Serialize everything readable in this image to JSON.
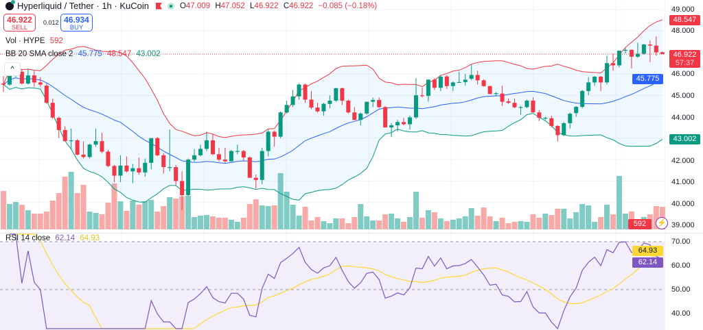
{
  "header": {
    "title": "Hyperliquid / Tether · 1h · KuCoin",
    "ohlc": {
      "o_label": "O",
      "o": "47.009",
      "h_label": "H",
      "h": "47.052",
      "l_label": "L",
      "l": "46.922",
      "c_label": "C",
      "c": "46.922",
      "change": "−0.085 (−0.18%)"
    },
    "sell_price": "46.922",
    "sell_label": "SELL",
    "spread": "0.012",
    "buy_price": "46.934",
    "buy_label": "BUY",
    "icons": [
      "coin-logo-icon",
      "flag-icon",
      "market-open-dot-icon",
      "chevron-up-icon",
      "lightning-icon"
    ]
  },
  "legends": {
    "vol": {
      "label": "Vol · HYPE",
      "value": "592"
    },
    "bb": {
      "label": "BB 20 SMA close 2",
      "basis": "45.775",
      "upper": "48.547",
      "lower": "43.002"
    },
    "rsi": {
      "label": "RSI 14 close",
      "rsi": "62.14",
      "ma": "64.93"
    }
  },
  "axis": {
    "price_ticks": [
      "49.000",
      "48.000",
      "46.000",
      "45.000",
      "44.000",
      "42.000",
      "41.000",
      "40.000",
      "39.000"
    ],
    "rsi_ticks": [
      "70.00",
      "60.00",
      "50.00",
      "40.00"
    ],
    "tags": {
      "bb_upper": "48.547",
      "last_price": "46.922",
      "countdown": "57:37",
      "bb_basis": "45.775",
      "bb_lower": "43.002",
      "volume": "592",
      "rsi_ma": "64.93",
      "rsi": "62.14"
    }
  },
  "colors": {
    "up": "#089981",
    "down": "#f23645",
    "vol_up": "#80cbc4",
    "vol_down": "#f7a9a7",
    "bb_upper": "#f23645",
    "bb_basis": "#2962ff",
    "bb_lower": "#089981",
    "rsi": "#7e57c2",
    "rsi_ma": "#fdd835"
  },
  "chart_data": {
    "type": "candlestick",
    "symbol": "Hyperliquid / Tether",
    "interval": "1h",
    "ylim": [
      39,
      49
    ],
    "rsi_ylim": [
      35,
      74
    ],
    "ohlc": [
      [
        45.55,
        45.9,
        45.15,
        45.5
      ],
      [
        45.5,
        46.0,
        45.45,
        45.95
      ],
      [
        45.95,
        46.25,
        45.85,
        46.0
      ],
      [
        46.1,
        46.2,
        45.5,
        45.55
      ],
      [
        45.55,
        46.25,
        45.5,
        45.93
      ],
      [
        45.93,
        46.15,
        45.4,
        45.6
      ],
      [
        45.6,
        45.85,
        45.4,
        45.5
      ],
      [
        45.45,
        45.55,
        44.6,
        44.65
      ],
      [
        44.65,
        44.85,
        43.9,
        43.96
      ],
      [
        43.95,
        44.0,
        43.0,
        43.38
      ],
      [
        43.38,
        43.55,
        42.85,
        42.86
      ],
      [
        42.86,
        43.45,
        42.5,
        42.9
      ],
      [
        42.9,
        42.95,
        42.2,
        42.23
      ],
      [
        42.23,
        42.85,
        42.05,
        42.12
      ],
      [
        42.12,
        42.75,
        42.05,
        42.7
      ],
      [
        42.7,
        43.45,
        42.6,
        42.86
      ],
      [
        42.86,
        43.25,
        42.3,
        42.37
      ],
      [
        42.37,
        42.45,
        41.65,
        41.7
      ],
      [
        41.7,
        41.75,
        40.95,
        41.25
      ],
      [
        41.25,
        42.2,
        40.95,
        41.72
      ],
      [
        41.72,
        42.15,
        41.4,
        41.45
      ],
      [
        41.45,
        41.8,
        40.9,
        41.6
      ],
      [
        41.6,
        42.1,
        41.3,
        41.4
      ],
      [
        41.4,
        42.05,
        41.2,
        41.85
      ],
      [
        41.85,
        43.0,
        41.55,
        43.0
      ],
      [
        43.0,
        43.05,
        42.15,
        42.2
      ],
      [
        42.2,
        42.3,
        41.35,
        41.65
      ],
      [
        41.65,
        43.4,
        41.45,
        41.65
      ],
      [
        41.65,
        41.75,
        40.8,
        41.0
      ],
      [
        41.0,
        41.45,
        39.65,
        40.34
      ],
      [
        40.34,
        42.05,
        40.3,
        42.0
      ],
      [
        42.0,
        42.5,
        41.9,
        42.2
      ],
      [
        42.2,
        42.7,
        42.15,
        42.5
      ],
      [
        42.5,
        43.3,
        42.4,
        42.9
      ],
      [
        42.9,
        43.2,
        42.2,
        42.25
      ],
      [
        42.25,
        42.55,
        41.9,
        42.0
      ],
      [
        42.0,
        42.55,
        41.85,
        41.92
      ],
      [
        41.92,
        42.45,
        41.9,
        42.4
      ],
      [
        42.4,
        42.7,
        42.25,
        42.4
      ],
      [
        42.4,
        42.45,
        41.95,
        42.1
      ],
      [
        42.1,
        42.15,
        41.15,
        41.15
      ],
      [
        41.15,
        41.3,
        40.65,
        41.05
      ],
      [
        41.05,
        42.55,
        40.85,
        42.4
      ],
      [
        42.4,
        43.4,
        42.15,
        43.3
      ],
      [
        43.3,
        43.35,
        42.6,
        43.07
      ],
      [
        43.07,
        44.25,
        43.0,
        44.2
      ],
      [
        44.2,
        44.75,
        44.15,
        44.55
      ],
      [
        44.55,
        45.25,
        44.45,
        44.95
      ],
      [
        44.95,
        45.55,
        44.8,
        45.5
      ],
      [
        45.5,
        45.55,
        44.65,
        44.8
      ],
      [
        44.8,
        45.2,
        44.35,
        44.43
      ],
      [
        44.43,
        44.65,
        44.2,
        44.25
      ],
      [
        44.25,
        44.65,
        44.05,
        44.6
      ],
      [
        44.6,
        45.0,
        44.4,
        44.75
      ],
      [
        44.75,
        45.35,
        44.7,
        45.33
      ],
      [
        45.33,
        45.35,
        44.55,
        44.75
      ],
      [
        44.75,
        44.8,
        44.15,
        44.2
      ],
      [
        44.2,
        44.45,
        43.85,
        43.85
      ],
      [
        43.85,
        44.2,
        43.6,
        44.15
      ],
      [
        44.15,
        44.7,
        44.1,
        44.7
      ],
      [
        44.7,
        44.9,
        44.45,
        44.78
      ],
      [
        44.78,
        44.9,
        44.4,
        44.45
      ],
      [
        44.45,
        44.5,
        43.5,
        43.5
      ],
      [
        43.5,
        43.7,
        43.05,
        43.6
      ],
      [
        43.6,
        43.85,
        43.3,
        43.75
      ],
      [
        43.75,
        43.95,
        43.6,
        43.65
      ],
      [
        43.65,
        44.05,
        43.4,
        43.97
      ],
      [
        43.97,
        45.8,
        43.9,
        45.0
      ],
      [
        45.0,
        45.35,
        44.9,
        44.97
      ],
      [
        44.97,
        45.75,
        44.7,
        45.73
      ],
      [
        45.73,
        45.8,
        45.25,
        45.35
      ],
      [
        45.35,
        45.95,
        45.2,
        45.87
      ],
      [
        45.88,
        45.95,
        45.3,
        45.43
      ],
      [
        45.43,
        45.65,
        45.2,
        45.6
      ],
      [
        45.62,
        46.1,
        45.6,
        45.62
      ],
      [
        45.62,
        46.0,
        45.45,
        45.73
      ],
      [
        45.77,
        46.45,
        45.7,
        45.95
      ],
      [
        45.95,
        46.15,
        45.5,
        45.7
      ],
      [
        45.7,
        45.75,
        45.4,
        45.43
      ],
      [
        45.43,
        45.45,
        45.05,
        45.06
      ],
      [
        45.06,
        45.15,
        44.95,
        45.1
      ],
      [
        45.08,
        45.45,
        44.5,
        44.7
      ],
      [
        44.72,
        44.85,
        44.6,
        44.65
      ],
      [
        44.65,
        44.85,
        44.4,
        44.44
      ],
      [
        44.45,
        44.5,
        44.1,
        44.45
      ],
      [
        44.45,
        44.8,
        44.4,
        44.75
      ],
      [
        44.75,
        44.9,
        44.2,
        44.2
      ],
      [
        44.2,
        44.3,
        43.8,
        43.95
      ],
      [
        43.95,
        44.0,
        43.85,
        43.95
      ],
      [
        43.93,
        44.05,
        43.5,
        43.57
      ],
      [
        43.57,
        43.6,
        42.85,
        43.14
      ],
      [
        43.14,
        43.75,
        43.1,
        43.7
      ],
      [
        43.7,
        44.2,
        43.45,
        44.14
      ],
      [
        44.17,
        44.5,
        44.0,
        44.46
      ],
      [
        44.46,
        45.25,
        44.4,
        45.2
      ],
      [
        45.2,
        45.85,
        45.0,
        45.6
      ],
      [
        45.6,
        45.9,
        45.45,
        45.87
      ],
      [
        45.87,
        45.9,
        45.2,
        45.6
      ],
      [
        45.6,
        46.85,
        45.5,
        46.5
      ],
      [
        46.5,
        46.95,
        46.15,
        46.4
      ],
      [
        46.4,
        47.1,
        46.3,
        47.08
      ],
      [
        47.08,
        47.2,
        46.95,
        47.12
      ],
      [
        47.12,
        47.15,
        46.25,
        46.8
      ],
      [
        46.8,
        47.45,
        46.75,
        46.94
      ],
      [
        46.94,
        47.4,
        46.9,
        47.37
      ],
      [
        47.37,
        47.55,
        46.55,
        47.32
      ],
      [
        47.32,
        47.75,
        46.85,
        47.0
      ],
      [
        47.009,
        47.052,
        46.922,
        46.922
      ]
    ],
    "volume": [
      1008,
      666,
      720,
      648,
      504,
      414,
      414,
      468,
      756,
      954,
      1386,
      1512,
      954,
      1170,
      468,
      432,
      396,
      702,
      1206,
      738,
      486,
      756,
      648,
      738,
      774,
      468,
      612,
      846,
      810,
      864,
      882,
      324,
      360,
      378,
      342,
      306,
      306,
      252,
      198,
      306,
      666,
      792,
      630,
      612,
      630,
      1476,
      990,
      648,
      360,
      594,
      234,
      324,
      216,
      162,
      288,
      288,
      162,
      324,
      666,
      342,
      234,
      234,
      396,
      414,
      288,
      198,
      324,
      990,
      306,
      504,
      450,
      288,
      216,
      252,
      288,
      342,
      558,
      360,
      576,
      342,
      216,
      306,
      162,
      198,
      216,
      198,
      396,
      306,
      414,
      378,
      540,
      540,
      288,
      450,
      666,
      630,
      198,
      324,
      648,
      396,
      1404,
      414,
      468,
      234,
      324,
      396,
      612,
      592
    ]
  }
}
